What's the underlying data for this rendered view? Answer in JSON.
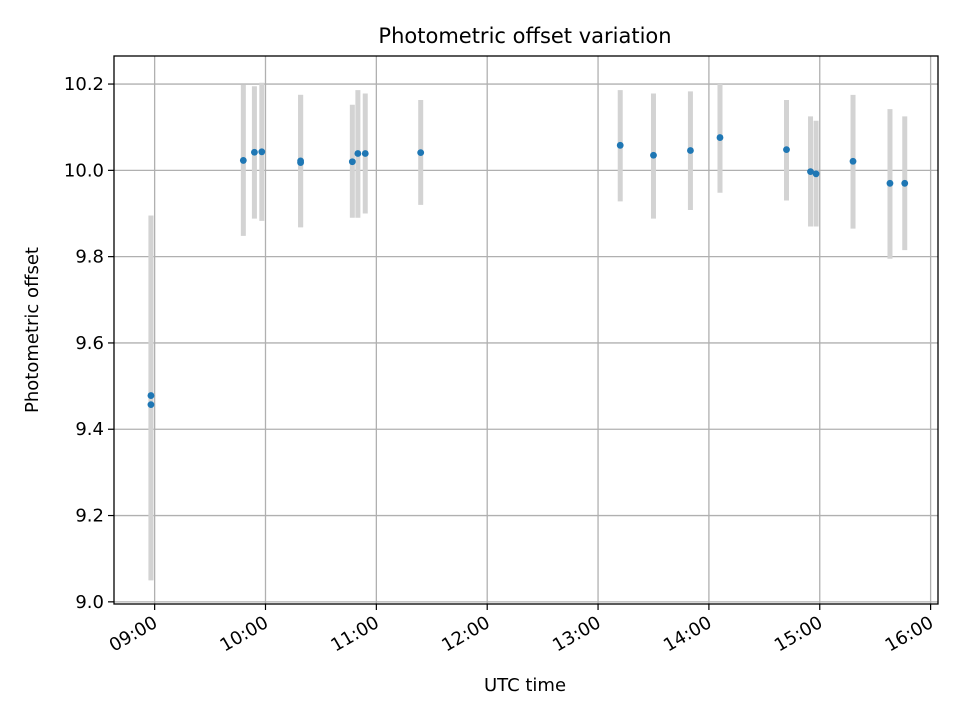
{
  "chart_data": {
    "type": "scatter",
    "title": "Photometric offset variation",
    "xlabel": "UTC time",
    "ylabel": "Photometric offset",
    "x_tick_labels": [
      "09:00",
      "10:00",
      "11:00",
      "12:00",
      "13:00",
      "14:00",
      "15:00",
      "16:00"
    ],
    "y_tick_labels": [
      "9.0",
      "9.2",
      "9.4",
      "9.6",
      "9.8",
      "10.0",
      "10.2"
    ],
    "y_ticks": [
      9.0,
      9.2,
      9.4,
      9.6,
      9.8,
      10.0,
      10.2
    ],
    "xlim": [
      "08:38",
      "16:04"
    ],
    "ylim": [
      8.995,
      10.265
    ],
    "grid": true,
    "colors": {
      "points": "#1f77b4",
      "errorbars": "#d3d3d3",
      "grid": "#b0b0b0"
    },
    "points": [
      {
        "x": "08:58",
        "y": 9.478,
        "err_low": 9.05,
        "err_high": 9.895
      },
      {
        "x": "08:58",
        "y": 9.457,
        "err_low": 9.05,
        "err_high": 9.895
      },
      {
        "x": "09:48",
        "y": 10.023,
        "err_low": 9.848,
        "err_high": 10.198
      },
      {
        "x": "09:54",
        "y": 10.042,
        "err_low": 9.888,
        "err_high": 10.195
      },
      {
        "x": "09:58",
        "y": 10.043,
        "err_low": 9.883,
        "err_high": 10.203
      },
      {
        "x": "10:19",
        "y": 10.022,
        "err_low": 9.868,
        "err_high": 10.175
      },
      {
        "x": "10:19",
        "y": 10.018,
        "err_low": 9.868,
        "err_high": 10.175
      },
      {
        "x": "10:47",
        "y": 10.02,
        "err_low": 9.89,
        "err_high": 10.152
      },
      {
        "x": "10:50",
        "y": 10.039,
        "err_low": 9.89,
        "err_high": 10.186
      },
      {
        "x": "10:54",
        "y": 10.039,
        "err_low": 9.9,
        "err_high": 10.178
      },
      {
        "x": "11:24",
        "y": 10.041,
        "err_low": 9.92,
        "err_high": 10.163
      },
      {
        "x": "13:12",
        "y": 10.058,
        "err_low": 9.928,
        "err_high": 10.186
      },
      {
        "x": "13:30",
        "y": 10.035,
        "err_low": 9.888,
        "err_high": 10.178
      },
      {
        "x": "13:50",
        "y": 10.046,
        "err_low": 9.908,
        "err_high": 10.183
      },
      {
        "x": "14:06",
        "y": 10.076,
        "err_low": 9.948,
        "err_high": 10.2
      },
      {
        "x": "14:42",
        "y": 10.048,
        "err_low": 9.93,
        "err_high": 10.163
      },
      {
        "x": "14:55",
        "y": 9.997,
        "err_low": 9.87,
        "err_high": 10.125
      },
      {
        "x": "14:58",
        "y": 9.992,
        "err_low": 9.87,
        "err_high": 10.115
      },
      {
        "x": "15:18",
        "y": 10.021,
        "err_low": 9.865,
        "err_high": 10.175
      },
      {
        "x": "15:38",
        "y": 9.97,
        "err_low": 9.795,
        "err_high": 10.142
      },
      {
        "x": "15:46",
        "y": 9.97,
        "err_low": 9.815,
        "err_high": 10.125
      }
    ]
  }
}
